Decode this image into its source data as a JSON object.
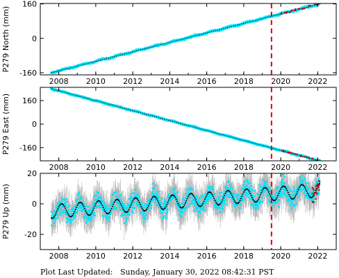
{
  "chart_data": [
    {
      "type": "scatter",
      "ylabel": "P279 North (mm)",
      "xlim": [
        2007.0,
        2023.0
      ],
      "ylim": [
        -170,
        162
      ],
      "x_ticks": [
        2008,
        2010,
        2012,
        2014,
        2016,
        2018,
        2020,
        2022
      ],
      "y_ticks": [
        160,
        0,
        -160
      ],
      "trend": {
        "x": [
          2007.6,
          2022.1
        ],
        "y": [
          -160,
          160
        ]
      },
      "event_line_x": 2019.5,
      "highlight_segment": {
        "x": [
          2020.0,
          2022.1
        ]
      }
    },
    {
      "type": "scatter",
      "ylabel": "P279 East (mm)",
      "xlim": [
        2007.0,
        2023.0
      ],
      "ylim": [
        -250,
        250
      ],
      "x_ticks": [
        2008,
        2010,
        2012,
        2014,
        2016,
        2018,
        2020,
        2022
      ],
      "y_ticks": [
        160,
        0,
        -160
      ],
      "trend": {
        "x": [
          2007.6,
          2022.1
        ],
        "y": [
          240,
          -250
        ]
      },
      "event_line_x": 2019.5,
      "highlight_segment": {
        "x": [
          2020.0,
          2022.1
        ]
      }
    },
    {
      "type": "scatter",
      "ylabel": "P279 Up (mm)",
      "xlim": [
        2007.0,
        2023.0
      ],
      "ylim": [
        -30,
        20
      ],
      "x_ticks": [
        2008,
        2010,
        2012,
        2014,
        2016,
        2018,
        2020,
        2022
      ],
      "y_ticks": [
        20,
        0,
        -20
      ],
      "seasonal_model": {
        "base_start": -5,
        "base_end": 9,
        "amplitude": 4.5,
        "period_years": 1.0
      },
      "scatter_spread": 6,
      "error_bar": 8,
      "event_line_x": 2019.5
    }
  ],
  "footer": {
    "prefix": "Plot Last Updated:",
    "timestamp": "Sunday, January 30, 2022 08:42:31 PST"
  },
  "colors": {
    "data": "#00e5ff",
    "model": "#000000",
    "error": "#b4b4b4",
    "event": "#e00000",
    "recent": "#cc0000"
  }
}
